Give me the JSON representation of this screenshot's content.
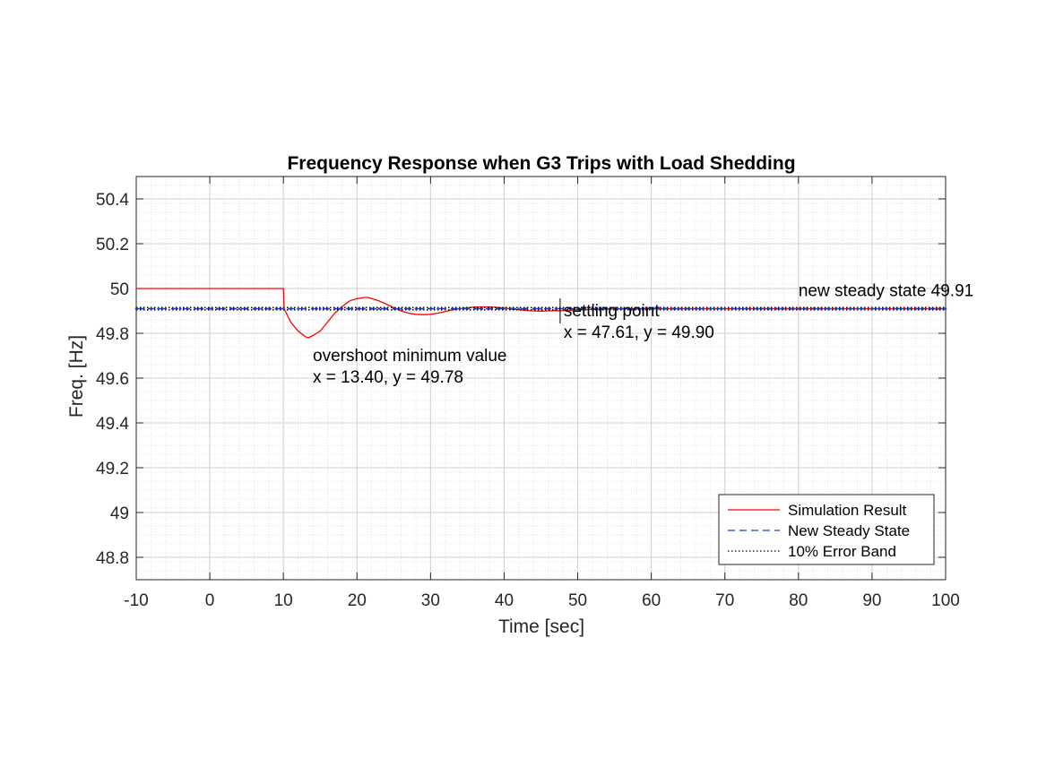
{
  "chart_data": {
    "type": "line",
    "title": "Frequency Response when G3 Trips with Load Shedding",
    "xlabel": "Time [sec]",
    "ylabel": "Freq. [Hz]",
    "xlim": [
      -10,
      100
    ],
    "ylim": [
      48.7,
      50.5
    ],
    "xticks": [
      -10,
      0,
      10,
      20,
      30,
      40,
      50,
      60,
      70,
      80,
      90,
      100
    ],
    "xtick_labels": [
      "-10",
      "0",
      "10",
      "20",
      "30",
      "40",
      "50",
      "60",
      "70",
      "80",
      "90",
      "100"
    ],
    "yticks": [
      48.8,
      49,
      49.2,
      49.4,
      49.6,
      49.8,
      50,
      50.2,
      50.4
    ],
    "ytick_labels": [
      "48.8",
      "49",
      "49.2",
      "49.4",
      "49.6",
      "49.8",
      "50",
      "50.2",
      "50.4"
    ],
    "grid": true,
    "minor_grid": true,
    "legend_position": "bottom-right",
    "series": [
      {
        "name": "Simulation Result",
        "color": "#ff0000",
        "style": "solid",
        "x": [
          -10,
          10,
          10.1,
          11,
          12,
          13,
          13.4,
          14,
          15,
          16,
          17,
          18,
          19,
          20,
          21,
          21.5,
          22,
          23,
          24,
          25,
          26,
          27,
          28,
          29,
          30,
          31,
          32,
          33,
          34,
          35,
          36,
          37,
          38,
          39,
          40,
          41,
          42,
          43,
          44,
          45,
          46,
          47,
          47.61,
          50,
          55,
          60,
          70,
          80,
          90,
          100
        ],
        "y": [
          50,
          50,
          49.91,
          49.85,
          49.81,
          49.785,
          49.78,
          49.79,
          49.81,
          49.85,
          49.89,
          49.92,
          49.945,
          49.955,
          49.96,
          49.96,
          49.955,
          49.945,
          49.93,
          49.915,
          49.9,
          49.89,
          49.885,
          49.883,
          49.885,
          49.89,
          49.897,
          49.905,
          49.91,
          49.914,
          49.917,
          49.918,
          49.918,
          49.916,
          49.913,
          49.909,
          49.905,
          49.902,
          49.9,
          49.899,
          49.9,
          49.901,
          49.9,
          49.905,
          49.909,
          49.91,
          49.91,
          49.91,
          49.91,
          49.91
        ]
      },
      {
        "name": "New Steady State",
        "color": "#1f3fbf",
        "style": "dashed",
        "x": [
          -10,
          100
        ],
        "y": [
          49.91,
          49.91
        ]
      },
      {
        "name": "10% Error Band",
        "color": "#000000",
        "style": "dotted",
        "x": [
          -10,
          100
        ],
        "y": [
          49.905,
          49.905
        ]
      },
      {
        "name": "",
        "color": "#000000",
        "style": "dotted",
        "x": [
          -10,
          100
        ],
        "y": [
          49.915,
          49.915
        ]
      }
    ],
    "annotations": [
      {
        "lines": [
          "overshoot minimum value",
          "x = 13.40, y = 49.78"
        ],
        "x": 14.0,
        "y": 49.78
      },
      {
        "lines": [
          "settling point",
          "x = 47.61, y = 49.90"
        ],
        "x": 47.61,
        "y": 49.9
      },
      {
        "lines": [
          "new steady state 49.91"
        ],
        "x": 80,
        "y": 49.91
      }
    ],
    "legend": [
      "Simulation Result",
      "New Steady State",
      "10% Error Band"
    ]
  }
}
